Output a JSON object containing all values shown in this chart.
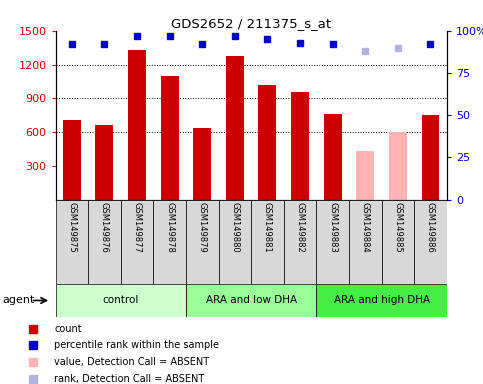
{
  "title": "GDS2652 / 211375_s_at",
  "samples": [
    "GSM149875",
    "GSM149876",
    "GSM149877",
    "GSM149878",
    "GSM149879",
    "GSM149880",
    "GSM149881",
    "GSM149882",
    "GSM149883",
    "GSM149884",
    "GSM149885",
    "GSM149886"
  ],
  "bar_values": [
    710,
    665,
    1330,
    1100,
    640,
    1280,
    1020,
    960,
    760,
    430,
    600,
    755
  ],
  "bar_colors": [
    "#cc0000",
    "#cc0000",
    "#cc0000",
    "#cc0000",
    "#cc0000",
    "#cc0000",
    "#cc0000",
    "#cc0000",
    "#cc0000",
    "#ffb3b3",
    "#ffb3b3",
    "#cc0000"
  ],
  "percentile_values": [
    92,
    92,
    97,
    97,
    92,
    97,
    95,
    93,
    92,
    88,
    90,
    92
  ],
  "percentile_colors": [
    "#0000cc",
    "#0000cc",
    "#0000cc",
    "#0000cc",
    "#0000cc",
    "#0000cc",
    "#0000cc",
    "#0000cc",
    "#0000cc",
    "#b3b3dd",
    "#b3b3dd",
    "#0000cc"
  ],
  "ylim_left": [
    0,
    1500
  ],
  "ylim_right": [
    0,
    100
  ],
  "yticks_left": [
    300,
    600,
    900,
    1200,
    1500
  ],
  "yticks_right": [
    0,
    25,
    50,
    75,
    100
  ],
  "grid_lines": [
    600,
    900,
    1200
  ],
  "groups": [
    {
      "label": "control",
      "start": 0,
      "end": 3,
      "color": "#ccffcc"
    },
    {
      "label": "ARA and low DHA",
      "start": 4,
      "end": 7,
      "color": "#99ff99"
    },
    {
      "label": "ARA and high DHA",
      "start": 8,
      "end": 11,
      "color": "#44ee44"
    }
  ],
  "legend_items": [
    {
      "label": "count",
      "color": "#cc0000"
    },
    {
      "label": "percentile rank within the sample",
      "color": "#0000cc"
    },
    {
      "label": "value, Detection Call = ABSENT",
      "color": "#ffb3b3"
    },
    {
      "label": "rank, Detection Call = ABSENT",
      "color": "#b3b3dd"
    }
  ],
  "agent_label": "agent",
  "tick_label_color_left": "#cc0000",
  "tick_label_color_right": "#0000cc",
  "bar_width": 0.55
}
